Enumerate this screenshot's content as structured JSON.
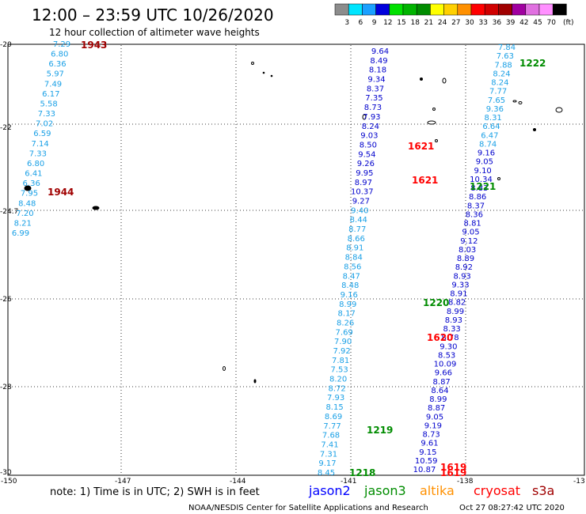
{
  "header": {
    "title": "12:00 – 23:59 UTC 10/26/2020",
    "subtitle": "12 hour collection of altimeter wave heights"
  },
  "legend": {
    "unit": "(ft)",
    "bins": [
      {
        "label": "3",
        "color": "#8c8c8c"
      },
      {
        "label": "6",
        "color": "#00e5ff"
      },
      {
        "label": "9",
        "color": "#1aa0ff"
      },
      {
        "label": "12",
        "color": "#0000dc"
      },
      {
        "label": "15",
        "color": "#00e000"
      },
      {
        "label": "18",
        "color": "#00b400"
      },
      {
        "label": "21",
        "color": "#008c00"
      },
      {
        "label": "24",
        "color": "#ffff00"
      },
      {
        "label": "27",
        "color": "#ffd000"
      },
      {
        "label": "30",
        "color": "#ff9000"
      },
      {
        "label": "33",
        "color": "#ff0000"
      },
      {
        "label": "36",
        "color": "#d00000"
      },
      {
        "label": "39",
        "color": "#a00000"
      },
      {
        "label": "42",
        "color": "#a000a0"
      },
      {
        "label": "45",
        "color": "#e070e0"
      },
      {
        "label": "70",
        "color": "#ff90ff"
      },
      {
        "label": "",
        "color": "#000000"
      }
    ]
  },
  "axes": {
    "lat_labels": [
      "-20",
      "-22",
      "-24.7",
      "-26",
      "-28",
      "-30"
    ],
    "lon_labels": [
      "-150",
      "-147",
      "-144",
      "-141",
      "-138",
      "-13"
    ]
  },
  "tracks": [
    {
      "name": "track-1943-1944",
      "color": "#1aa0e6",
      "values": [
        "7.29",
        "6.80",
        "6.36",
        "5.97",
        "7.49",
        "6.17",
        "5.58",
        "7.33",
        "7.02",
        "6.59",
        "7.14",
        "7.33",
        "6.80",
        "6.41",
        "6.36",
        "7.95",
        "8.48",
        "7.20",
        "8.21",
        "6.99"
      ]
    },
    {
      "name": "track-1621-upper",
      "color": "#0000cc",
      "values": [
        "9.64",
        "8.49",
        "8.18",
        "9.34",
        "8.37",
        "7.35",
        "8.73",
        "7.93",
        "8.24",
        "9.03",
        "8.50",
        "9.54",
        "9.26",
        "9.95",
        "8.97",
        "10.37",
        "9.27",
        "9.40",
        "8.44",
        "8.77",
        "8.66",
        "8.91",
        "8.84",
        "8.56",
        "8.47",
        "8.48",
        "9.16",
        "8.99",
        "8.17",
        "8.26",
        "7.69",
        "7.90",
        "7.92",
        "7.81",
        "7.53",
        "8.20",
        "8.72",
        "7.93",
        "8.15",
        "8.69",
        "7.77",
        "7.68",
        "7.41",
        "7.31",
        "9.17",
        "8.45"
      ]
    },
    {
      "name": "track-1222-1220",
      "color": "#0000cc",
      "values": [
        "7.84",
        "7.63",
        "7.88",
        "8.24",
        "8.24",
        "7.77",
        "7.65",
        "9.36",
        "8.31",
        "6.64",
        "6.47",
        "8.74",
        "9.16",
        "9.05",
        "9.10",
        "10.34",
        "8.83",
        "8.86",
        "8.37",
        "8.36",
        "8.81",
        "9.05",
        "9.12",
        "8.03",
        "8.89",
        "8.92",
        "8.93",
        "9.33",
        "8.91",
        "8.82",
        "8.99",
        "8.93",
        "8.33",
        "8.78",
        "9.30",
        "8.53",
        "10.09",
        "9.66",
        "8.87",
        "8.64",
        "8.99",
        "8.87",
        "9.05",
        "9.19",
        "8.73",
        "9.61",
        "9.15",
        "10.59",
        "10.87"
      ]
    }
  ],
  "pass_labels": [
    {
      "text": "1943",
      "color": "#a00000"
    },
    {
      "text": "1944",
      "color": "#a00000"
    },
    {
      "text": "1222",
      "color": "#008c00"
    },
    {
      "text": "1221",
      "color": "#008c00"
    },
    {
      "text": "1621",
      "color": "#ff0000"
    },
    {
      "text": "1621",
      "color": "#ff0000"
    },
    {
      "text": "1220",
      "color": "#008c00"
    },
    {
      "text": "1620",
      "color": "#ff0000"
    },
    {
      "text": "1219",
      "color": "#008c00"
    },
    {
      "text": "1218",
      "color": "#008c00"
    },
    {
      "text": "1619",
      "color": "#ff0000"
    },
    {
      "text": "1619",
      "color": "#ff0000"
    }
  ],
  "footer": {
    "note": "note:  1) Time is in UTC; 2) SWH is in feet",
    "satellites": [
      {
        "name": "jason2",
        "color": "#0000ff"
      },
      {
        "name": "jason3",
        "color": "#008c00"
      },
      {
        "name": "altika",
        "color": "#ff9000"
      },
      {
        "name": "cryosat",
        "color": "#ff0000"
      },
      {
        "name": "s3a",
        "color": "#a00000"
      }
    ],
    "credit": "NOAA/NESDIS Center for Satellite Applications and Research",
    "timestamp": "Oct 27 08:27:42 UTC 2020"
  }
}
